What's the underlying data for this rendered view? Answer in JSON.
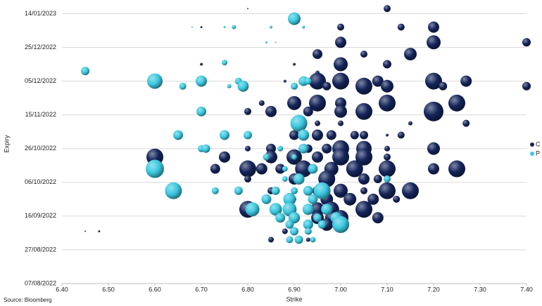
{
  "chart_data": {
    "type": "scatter",
    "y_is_date": true,
    "x_label": "Strike",
    "y_label": "Expiry",
    "source": "Source: Bloomberg",
    "xlim": [
      6.4,
      7.4
    ],
    "xticks": [
      {
        "value": 6.4,
        "label": "6.40"
      },
      {
        "value": 6.5,
        "label": "6.50"
      },
      {
        "value": 6.6,
        "label": "6.60"
      },
      {
        "value": 6.7,
        "label": "6.70"
      },
      {
        "value": 6.8,
        "label": "6.80"
      },
      {
        "value": 6.9,
        "label": "6.90"
      },
      {
        "value": 7.0,
        "label": "7.00"
      },
      {
        "value": 7.1,
        "label": "7.10"
      },
      {
        "value": 7.2,
        "label": "7.20"
      },
      {
        "value": 7.3,
        "label": "7.30"
      },
      {
        "value": 7.4,
        "label": "7.40"
      }
    ],
    "ylim": [
      "2022-08-07",
      "2023-01-20"
    ],
    "yticks": [
      {
        "value": "2022-08-07",
        "label": "07/08/2022"
      },
      {
        "value": "2022-08-27",
        "label": "27/08/2022"
      },
      {
        "value": "2022-09-16",
        "label": "16/09/2022"
      },
      {
        "value": "2022-10-06",
        "label": "06/10/2022"
      },
      {
        "value": "2022-10-26",
        "label": "26/10/2022"
      },
      {
        "value": "2022-11-15",
        "label": "15/11/2022"
      },
      {
        "value": "2022-12-05",
        "label": "05/12/2022"
      },
      {
        "value": "2022-12-25",
        "label": "25/12/2022"
      },
      {
        "value": "2023-01-14",
        "label": "14/01/2023"
      }
    ],
    "grid": true,
    "legend": "right",
    "series": [
      {
        "name": "C",
        "color": "#14245a",
        "x": [
          6.8,
          7.1,
          7.0,
          7.2,
          7.13,
          6.7,
          7.2,
          7.4,
          7.0,
          7.15,
          6.95,
          7.05,
          6.7,
          6.9,
          7.0,
          7.1,
          6.95,
          6.7,
          6.95,
          7.0,
          7.08,
          7.2,
          7.27,
          6.88,
          7.05,
          7.1,
          7.22,
          6.97,
          7.4,
          6.9,
          6.95,
          7.1,
          7.25,
          7.0,
          6.83,
          6.85,
          6.93,
          7.05,
          7.2,
          7.0,
          6.8,
          6.95,
          7.0,
          7.27,
          7.15,
          6.9,
          6.95,
          6.98,
          7.03,
          7.05,
          7.13,
          7.1,
          6.75,
          6.7,
          6.85,
          6.93,
          6.97,
          7.0,
          7.05,
          7.1,
          7.2,
          6.8,
          6.6,
          6.75,
          6.85,
          6.9,
          6.95,
          7.0,
          7.05,
          7.1,
          6.73,
          6.8,
          6.87,
          6.92,
          6.98,
          7.03,
          7.1,
          7.2,
          7.25,
          6.83,
          6.9,
          6.97,
          7.05,
          6.8,
          7.08,
          6.85,
          6.95,
          7.0,
          7.1,
          7.15,
          7.05,
          6.9,
          6.97,
          7.02,
          7.07,
          7.12,
          6.95,
          6.98,
          7.05,
          6.8,
          6.9,
          6.95,
          7.0,
          7.08,
          6.98,
          6.93,
          6.97,
          7.0,
          6.45,
          6.48,
          6.88,
          6.85,
          6.93
        ],
        "values": [
          "2023-01-17",
          "2023-01-17",
          "2023-01-06",
          "2023-01-06",
          "2023-01-06",
          "2023-01-06",
          "2022-12-28",
          "2022-12-28",
          "2022-12-28",
          "2022-12-21",
          "2022-12-21",
          "2022-12-21",
          "2022-12-15",
          "2022-12-15",
          "2022-12-15",
          "2022-12-15",
          "2022-12-10",
          "2022-12-05",
          "2022-12-05",
          "2022-12-05",
          "2022-12-05",
          "2022-12-05",
          "2022-12-05",
          "2022-12-05",
          "2022-12-02",
          "2022-12-02",
          "2022-12-02",
          "2022-12-02",
          "2022-12-02",
          "2022-11-22",
          "2022-11-22",
          "2022-11-22",
          "2022-11-22",
          "2022-11-22",
          "2022-11-22",
          "2022-11-17",
          "2022-11-17",
          "2022-11-17",
          "2022-11-17",
          "2022-11-17",
          "2022-11-17",
          "2022-11-10",
          "2022-11-10",
          "2022-11-10",
          "2022-11-10",
          "2022-11-03",
          "2022-11-03",
          "2022-11-03",
          "2022-11-03",
          "2022-11-03",
          "2022-11-03",
          "2022-11-03",
          "2022-11-03",
          "2022-10-26",
          "2022-10-26",
          "2022-10-26",
          "2022-10-26",
          "2022-10-26",
          "2022-10-26",
          "2022-10-26",
          "2022-10-26",
          "2022-10-26",
          "2022-10-21",
          "2022-10-21",
          "2022-10-21",
          "2022-10-21",
          "2022-10-21",
          "2022-10-21",
          "2022-10-21",
          "2022-10-21",
          "2022-10-14",
          "2022-10-14",
          "2022-10-14",
          "2022-10-14",
          "2022-10-14",
          "2022-10-14",
          "2022-10-14",
          "2022-10-14",
          "2022-10-14",
          "2022-10-14",
          "2022-10-08",
          "2022-10-08",
          "2022-10-08",
          "2022-10-08",
          "2022-10-08",
          "2022-10-01",
          "2022-10-01",
          "2022-10-01",
          "2022-10-01",
          "2022-10-01",
          "2022-10-01",
          "2022-09-26",
          "2022-09-26",
          "2022-09-26",
          "2022-09-26",
          "2022-09-26",
          "2022-09-20",
          "2022-09-20",
          "2022-09-20",
          "2022-09-20",
          "2022-09-15",
          "2022-09-15",
          "2022-09-15",
          "2022-09-15",
          "2022-09-15",
          "2022-09-11",
          "2022-09-11",
          "2022-09-11",
          "2022-09-07",
          "2022-09-07",
          "2022-09-07",
          "2022-09-02",
          "2022-09-02"
        ],
        "sizes": [
          1,
          5,
          5,
          8,
          5,
          1.5,
          10,
          6,
          8,
          9,
          7,
          5,
          2,
          2,
          10,
          6,
          3,
          1.5,
          12,
          12,
          8,
          12,
          8,
          2,
          12,
          9,
          6,
          6,
          6,
          10,
          12,
          12,
          12,
          8,
          4,
          8,
          7,
          12,
          14,
          9,
          5,
          4,
          4,
          5,
          3,
          7,
          8,
          7,
          6,
          6,
          5,
          2,
          6,
          4,
          7,
          6,
          7,
          12,
          11,
          4,
          9,
          4,
          12,
          8,
          9,
          11,
          8,
          12,
          12,
          5,
          7,
          12,
          7,
          12,
          10,
          12,
          12,
          8,
          12,
          8,
          8,
          12,
          8,
          5,
          6,
          5,
          7,
          10,
          12,
          12,
          5,
          3,
          9,
          9,
          8,
          5,
          10,
          11,
          12,
          12,
          8,
          9,
          11,
          8,
          9,
          7,
          9,
          12,
          1,
          1.5,
          4,
          4,
          3
        ]
      },
      {
        "name": "P",
        "color": "#3cc8e0",
        "x": [
          6.9,
          6.68,
          6.75,
          6.77,
          6.85,
          6.92,
          6.84,
          6.86,
          6.75,
          6.45,
          6.6,
          6.7,
          6.78,
          6.92,
          6.93,
          6.66,
          6.79,
          6.9,
          6.76,
          6.7,
          6.91,
          6.65,
          6.75,
          6.8,
          6.92,
          6.7,
          6.71,
          6.87,
          6.92,
          6.84,
          6.9,
          6.6,
          6.88,
          6.94,
          6.88,
          6.91,
          7.1,
          6.64,
          6.73,
          6.78,
          6.86,
          6.9,
          6.93,
          6.96,
          6.84,
          6.89,
          6.94,
          6.81,
          6.86,
          6.89,
          6.93,
          6.97,
          6.87,
          6.9,
          6.95,
          6.99,
          6.89,
          6.93,
          7.0,
          6.96,
          6.9,
          6.93,
          6.89,
          6.91,
          6.94
        ],
        "values": [
          "2023-01-11",
          "2023-01-06",
          "2023-01-06",
          "2023-01-06",
          "2023-01-06",
          "2023-01-06",
          "2022-12-28",
          "2022-12-28",
          "2022-12-16",
          "2022-12-11",
          "2022-12-05",
          "2022-12-05",
          "2022-12-05",
          "2022-12-05",
          "2022-12-05",
          "2022-12-02",
          "2022-12-02",
          "2022-12-02",
          "2022-12-02",
          "2022-11-17",
          "2022-11-10",
          "2022-11-03",
          "2022-11-03",
          "2022-11-03",
          "2022-11-03",
          "2022-10-26",
          "2022-10-26",
          "2022-10-26",
          "2022-10-26",
          "2022-10-21",
          "2022-10-21",
          "2022-10-14",
          "2022-10-14",
          "2022-10-14",
          "2022-10-08",
          "2022-10-08",
          "2022-10-08",
          "2022-10-01",
          "2022-10-01",
          "2022-10-01",
          "2022-10-01",
          "2022-10-01",
          "2022-10-01",
          "2022-10-01",
          "2022-09-26",
          "2022-09-26",
          "2022-09-26",
          "2022-09-20",
          "2022-09-20",
          "2022-09-20",
          "2022-09-20",
          "2022-09-20",
          "2022-09-15",
          "2022-09-15",
          "2022-09-15",
          "2022-09-15",
          "2022-09-11",
          "2022-09-11",
          "2022-09-11",
          "2022-09-11",
          "2022-09-07",
          "2022-09-07",
          "2022-09-02",
          "2022-09-02",
          "2022-09-02"
        ],
        "sizes": [
          9,
          1,
          1.5,
          3,
          2,
          2,
          1.5,
          1,
          4,
          6,
          11,
          8,
          5,
          7,
          5,
          5,
          8,
          5,
          3,
          7,
          12,
          7,
          7,
          6,
          8,
          5,
          6,
          4,
          7,
          5,
          4,
          13,
          4,
          7,
          4,
          8,
          5,
          12,
          5,
          6,
          6,
          5,
          7,
          12,
          7,
          9,
          7,
          10,
          9,
          10,
          8,
          8,
          7,
          8,
          6,
          8,
          6,
          7,
          12,
          6,
          6,
          5,
          5,
          6,
          4
        ]
      }
    ]
  }
}
